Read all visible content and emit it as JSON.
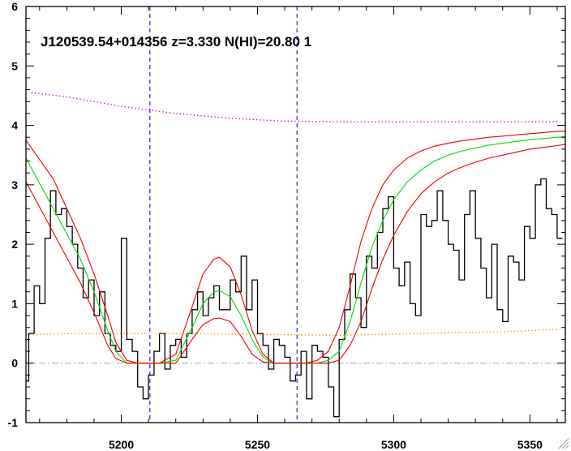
{
  "chart_data": {
    "type": "line",
    "title": "J120539.54+014356 z=3.330 N(HI)=20.80 1",
    "xlabel": "",
    "ylabel": "",
    "xlim": [
      5165,
      5363
    ],
    "ylim": [
      -1,
      6
    ],
    "xticks": [
      5200,
      5250,
      5300,
      5350
    ],
    "yticks": [
      -1,
      0,
      1,
      2,
      3,
      4,
      5,
      6
    ],
    "grid": false,
    "vlines": [
      5210.5,
      5264.5
    ],
    "hlines": [
      0
    ],
    "series": [
      {
        "role": "flux",
        "style": "step",
        "color": "#000000",
        "x": [
          5165,
          5167,
          5169,
          5171,
          5173,
          5175,
          5177,
          5179,
          5181,
          5183,
          5185,
          5187,
          5189,
          5191,
          5193,
          5195,
          5197,
          5199,
          5201,
          5203,
          5205,
          5207,
          5209,
          5211,
          5213,
          5215,
          5217,
          5219,
          5221,
          5223,
          5225,
          5227,
          5229,
          5231,
          5233,
          5235,
          5237,
          5239,
          5241,
          5243,
          5245,
          5247,
          5249,
          5251,
          5253,
          5255,
          5257,
          5259,
          5261,
          5263,
          5265,
          5267,
          5269,
          5271,
          5273,
          5275,
          5277,
          5279,
          5281,
          5283,
          5285,
          5287,
          5289,
          5291,
          5293,
          5295,
          5297,
          5299,
          5301,
          5303,
          5305,
          5307,
          5309,
          5311,
          5313,
          5315,
          5317,
          5319,
          5321,
          5323,
          5325,
          5327,
          5329,
          5331,
          5333,
          5335,
          5337,
          5339,
          5341,
          5343,
          5345,
          5347,
          5349,
          5351,
          5353,
          5355,
          5357,
          5359,
          5361
        ],
        "y": [
          -0.3,
          0.5,
          1.3,
          1.0,
          2.1,
          2.9,
          2.5,
          2.6,
          2.3,
          2.0,
          1.6,
          1.1,
          1.4,
          0.8,
          1.2,
          0.5,
          0.3,
          0.2,
          2.1,
          0.4,
          0.2,
          -0.4,
          -0.6,
          -0.2,
          0.2,
          0.5,
          -0.1,
          0.3,
          0.4,
          0.1,
          0.5,
          0.9,
          1.2,
          0.8,
          1.1,
          1.3,
          0.9,
          0.9,
          1.4,
          1.2,
          1.8,
          0.9,
          1.4,
          0.5,
          0.3,
          -0.1,
          0.4,
          0.3,
          0.1,
          -0.3,
          -0.2,
          0.2,
          -0.6,
          0.3,
          0.2,
          0.1,
          -0.4,
          -0.9,
          0.4,
          0.9,
          1.5,
          1.1,
          0.6,
          1.8,
          1.6,
          2.2,
          2.6,
          2.8,
          1.6,
          1.3,
          1.7,
          1.0,
          0.8,
          2.5,
          2.3,
          2.4,
          2.9,
          2.4,
          2.0,
          1.9,
          1.4,
          2.5,
          2.9,
          2.1,
          1.6,
          1.1,
          2.0,
          0.9,
          0.7,
          1.8,
          1.7,
          1.4,
          2.3,
          2.1,
          3.0,
          3.1,
          2.6,
          2.5,
          2.1
        ]
      },
      {
        "role": "fit",
        "style": "line",
        "color": "#00dd00",
        "x": [
          5165,
          5175,
          5185,
          5190,
          5195,
          5198,
          5202,
          5206,
          5210,
          5214,
          5220,
          5226,
          5230,
          5234,
          5236,
          5240,
          5244,
          5248,
          5252,
          5256,
          5260,
          5264,
          5268,
          5272,
          5276,
          5280,
          5284,
          5288,
          5292,
          5296,
          5300,
          5305,
          5310,
          5315,
          5320,
          5325,
          5330,
          5335,
          5340,
          5345,
          5350,
          5355,
          5360,
          5363
        ],
        "y": [
          3.45,
          2.6,
          1.75,
          1.2,
          0.55,
          0.2,
          0.0,
          0.0,
          0.0,
          0.0,
          0.05,
          0.6,
          1.0,
          1.2,
          1.22,
          1.12,
          0.8,
          0.4,
          0.1,
          0.0,
          0.0,
          0.0,
          0.0,
          0.0,
          0.05,
          0.2,
          0.7,
          1.35,
          1.95,
          2.4,
          2.75,
          3.05,
          3.25,
          3.4,
          3.5,
          3.57,
          3.62,
          3.67,
          3.7,
          3.73,
          3.76,
          3.78,
          3.8,
          3.81
        ]
      },
      {
        "role": "fit-upper",
        "style": "line",
        "color": "#ee0000",
        "x": [
          5165,
          5175,
          5185,
          5190,
          5195,
          5198,
          5202,
          5206,
          5210,
          5214,
          5220,
          5226,
          5230,
          5234,
          5236,
          5240,
          5244,
          5248,
          5252,
          5256,
          5260,
          5264,
          5268,
          5272,
          5276,
          5280,
          5284,
          5288,
          5292,
          5296,
          5300,
          5305,
          5310,
          5315,
          5320,
          5325,
          5330,
          5335,
          5340,
          5345,
          5350,
          5355,
          5360,
          5363
        ],
        "y": [
          3.75,
          3.1,
          2.1,
          1.5,
          0.8,
          0.35,
          0.05,
          0.0,
          0.0,
          0.0,
          0.15,
          0.95,
          1.5,
          1.75,
          1.78,
          1.62,
          1.15,
          0.55,
          0.15,
          0.0,
          0.0,
          0.0,
          0.0,
          0.05,
          0.2,
          0.6,
          1.3,
          2.05,
          2.6,
          3.0,
          3.25,
          3.45,
          3.57,
          3.65,
          3.7,
          3.74,
          3.77,
          3.8,
          3.82,
          3.84,
          3.86,
          3.88,
          3.9,
          3.9
        ]
      },
      {
        "role": "fit-lower",
        "style": "line",
        "color": "#ee0000",
        "x": [
          5165,
          5175,
          5185,
          5190,
          5195,
          5198,
          5202,
          5206,
          5210,
          5214,
          5220,
          5226,
          5230,
          5234,
          5236,
          5240,
          5244,
          5248,
          5252,
          5256,
          5260,
          5264,
          5268,
          5272,
          5276,
          5280,
          5284,
          5288,
          5292,
          5296,
          5300,
          5305,
          5310,
          5315,
          5320,
          5325,
          5330,
          5335,
          5340,
          5345,
          5350,
          5355,
          5360,
          5363
        ],
        "y": [
          3.05,
          2.2,
          1.35,
          0.85,
          0.3,
          0.08,
          0.0,
          0.0,
          0.0,
          0.0,
          0.0,
          0.4,
          0.65,
          0.75,
          0.76,
          0.7,
          0.45,
          0.15,
          0.02,
          0.0,
          0.0,
          0.0,
          0.0,
          0.0,
          0.0,
          0.05,
          0.3,
          0.7,
          1.25,
          1.75,
          2.15,
          2.55,
          2.85,
          3.05,
          3.2,
          3.3,
          3.38,
          3.45,
          3.5,
          3.55,
          3.6,
          3.63,
          3.66,
          3.68
        ]
      },
      {
        "role": "continuum",
        "style": "dotted",
        "color": "#cc00cc",
        "x": [
          5167,
          5180,
          5200,
          5220,
          5240,
          5260,
          5280,
          5300,
          5320,
          5340,
          5361
        ],
        "y": [
          4.55,
          4.48,
          4.32,
          4.2,
          4.12,
          4.07,
          4.06,
          4.06,
          4.06,
          4.06,
          4.06
        ]
      },
      {
        "role": "error",
        "style": "dotted",
        "color": "#ff8800",
        "x": [
          5165,
          5180,
          5200,
          5220,
          5240,
          5260,
          5280,
          5300,
          5320,
          5340,
          5361
        ],
        "y": [
          0.48,
          0.5,
          0.5,
          0.5,
          0.49,
          0.48,
          0.47,
          0.49,
          0.51,
          0.53,
          0.57
        ]
      }
    ]
  }
}
